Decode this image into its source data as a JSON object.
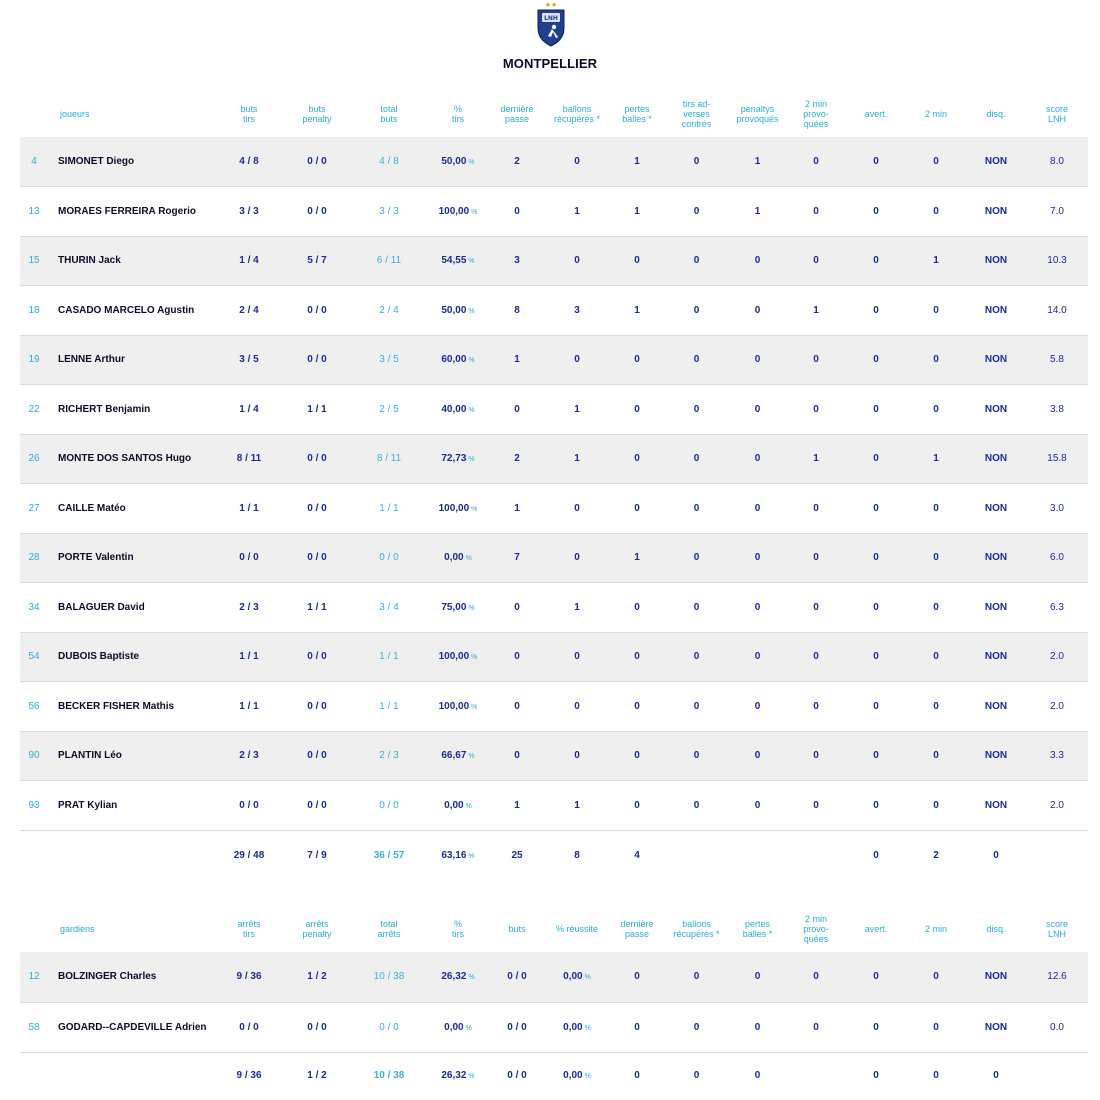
{
  "team": {
    "name": "MONTPELLIER"
  },
  "logo": {
    "icon": "lnh-handball-shield-icon",
    "stars": "★★",
    "color": "#1f3f8f"
  },
  "players": {
    "headers": [
      {
        "line1": "",
        "line2": ""
      },
      {
        "line1": "joueurs",
        "line2": ""
      },
      {
        "line1": "buts",
        "line2": "tirs"
      },
      {
        "line1": "buts",
        "line2": "penalty"
      },
      {
        "line1": "total",
        "line2": "buts"
      },
      {
        "line1": "%",
        "line2": "tirs"
      },
      {
        "line1": "dernière",
        "line2": "passe"
      },
      {
        "line1": "ballons",
        "line2": "récupérés *"
      },
      {
        "line1": "pertes",
        "line2": "balles *"
      },
      {
        "line1": "tirs ad-",
        "line2": "verses",
        "line3": "contrés"
      },
      {
        "line1": "penaltys",
        "line2": "provoqués"
      },
      {
        "line1": "2 min",
        "line2": "provo-",
        "line3": "quées"
      },
      {
        "line1": "avert.",
        "line2": ""
      },
      {
        "line1": "2 min",
        "line2": ""
      },
      {
        "line1": "disq.",
        "line2": ""
      },
      {
        "line1": "score",
        "line2": "LNH"
      }
    ],
    "rows": [
      {
        "num": "4",
        "name": "SIMONET Diego",
        "buts_tirs": "4 / 8",
        "penalty": "0 / 0",
        "total": "4 / 8",
        "pct": "50,00",
        "derniere": "2",
        "recup": "0",
        "pertes": "1",
        "contres": "0",
        "pen_prov": "1",
        "min_prov": "0",
        "avert": "0",
        "min2": "0",
        "disq": "NON",
        "score": "8.0"
      },
      {
        "num": "13",
        "name": "MORAES FERREIRA Rogerio",
        "buts_tirs": "3 / 3",
        "penalty": "0 / 0",
        "total": "3 / 3",
        "pct": "100,00",
        "derniere": "0",
        "recup": "1",
        "pertes": "1",
        "contres": "0",
        "pen_prov": "1",
        "min_prov": "0",
        "avert": "0",
        "min2": "0",
        "disq": "NON",
        "score": "7.0"
      },
      {
        "num": "15",
        "name": "THURIN Jack",
        "buts_tirs": "1 / 4",
        "penalty": "5 / 7",
        "total": "6 / 11",
        "pct": "54,55",
        "derniere": "3",
        "recup": "0",
        "pertes": "0",
        "contres": "0",
        "pen_prov": "0",
        "min_prov": "0",
        "avert": "0",
        "min2": "1",
        "disq": "NON",
        "score": "10.3"
      },
      {
        "num": "18",
        "name": "CASADO MARCELO Agustin",
        "buts_tirs": "2 / 4",
        "penalty": "0 / 0",
        "total": "2 / 4",
        "pct": "50,00",
        "derniere": "8",
        "recup": "3",
        "pertes": "1",
        "contres": "0",
        "pen_prov": "0",
        "min_prov": "1",
        "avert": "0",
        "min2": "0",
        "disq": "NON",
        "score": "14.0"
      },
      {
        "num": "19",
        "name": "LENNE Arthur",
        "buts_tirs": "3 / 5",
        "penalty": "0 / 0",
        "total": "3 / 5",
        "pct": "60,00",
        "derniere": "1",
        "recup": "0",
        "pertes": "0",
        "contres": "0",
        "pen_prov": "0",
        "min_prov": "0",
        "avert": "0",
        "min2": "0",
        "disq": "NON",
        "score": "5.8"
      },
      {
        "num": "22",
        "name": "RICHERT Benjamin",
        "buts_tirs": "1 / 4",
        "penalty": "1 / 1",
        "total": "2 / 5",
        "pct": "40,00",
        "derniere": "0",
        "recup": "1",
        "pertes": "0",
        "contres": "0",
        "pen_prov": "0",
        "min_prov": "0",
        "avert": "0",
        "min2": "0",
        "disq": "NON",
        "score": "3.8"
      },
      {
        "num": "26",
        "name": "MONTE DOS SANTOS Hugo",
        "buts_tirs": "8 / 11",
        "penalty": "0 / 0",
        "total": "8 / 11",
        "pct": "72,73",
        "derniere": "2",
        "recup": "1",
        "pertes": "0",
        "contres": "0",
        "pen_prov": "0",
        "min_prov": "1",
        "avert": "0",
        "min2": "1",
        "disq": "NON",
        "score": "15.8"
      },
      {
        "num": "27",
        "name": "CAILLE Matéo",
        "buts_tirs": "1 / 1",
        "penalty": "0 / 0",
        "total": "1 / 1",
        "pct": "100,00",
        "derniere": "1",
        "recup": "0",
        "pertes": "0",
        "contres": "0",
        "pen_prov": "0",
        "min_prov": "0",
        "avert": "0",
        "min2": "0",
        "disq": "NON",
        "score": "3.0"
      },
      {
        "num": "28",
        "name": "PORTE Valentin",
        "buts_tirs": "0 / 0",
        "penalty": "0 / 0",
        "total": "0 / 0",
        "pct": "0,00",
        "derniere": "7",
        "recup": "0",
        "pertes": "1",
        "contres": "0",
        "pen_prov": "0",
        "min_prov": "0",
        "avert": "0",
        "min2": "0",
        "disq": "NON",
        "score": "6.0"
      },
      {
        "num": "34",
        "name": "BALAGUER David",
        "buts_tirs": "2 / 3",
        "penalty": "1 / 1",
        "total": "3 / 4",
        "pct": "75,00",
        "derniere": "0",
        "recup": "1",
        "pertes": "0",
        "contres": "0",
        "pen_prov": "0",
        "min_prov": "0",
        "avert": "0",
        "min2": "0",
        "disq": "NON",
        "score": "6.3"
      },
      {
        "num": "54",
        "name": "DUBOIS Baptiste",
        "buts_tirs": "1 / 1",
        "penalty": "0 / 0",
        "total": "1 / 1",
        "pct": "100,00",
        "derniere": "0",
        "recup": "0",
        "pertes": "0",
        "contres": "0",
        "pen_prov": "0",
        "min_prov": "0",
        "avert": "0",
        "min2": "0",
        "disq": "NON",
        "score": "2.0"
      },
      {
        "num": "56",
        "name": "BECKER FISHER Mathis",
        "buts_tirs": "1 / 1",
        "penalty": "0 / 0",
        "total": "1 / 1",
        "pct": "100,00",
        "derniere": "0",
        "recup": "0",
        "pertes": "0",
        "contres": "0",
        "pen_prov": "0",
        "min_prov": "0",
        "avert": "0",
        "min2": "0",
        "disq": "NON",
        "score": "2.0"
      },
      {
        "num": "90",
        "name": "PLANTIN Léo",
        "buts_tirs": "2 / 3",
        "penalty": "0 / 0",
        "total": "2 / 3",
        "pct": "66,67",
        "derniere": "0",
        "recup": "0",
        "pertes": "0",
        "contres": "0",
        "pen_prov": "0",
        "min_prov": "0",
        "avert": "0",
        "min2": "0",
        "disq": "NON",
        "score": "3.3"
      },
      {
        "num": "93",
        "name": "PRAT Kylian",
        "buts_tirs": "0 / 0",
        "penalty": "0 / 0",
        "total": "0 / 0",
        "pct": "0,00",
        "derniere": "1",
        "recup": "1",
        "pertes": "0",
        "contres": "0",
        "pen_prov": "0",
        "min_prov": "0",
        "avert": "0",
        "min2": "0",
        "disq": "NON",
        "score": "2.0"
      }
    ],
    "totals": {
      "buts_tirs": "29 / 48",
      "penalty": "7 / 9",
      "total": "36 / 57",
      "pct": "63,16",
      "derniere": "25",
      "recup": "8",
      "pertes": "4",
      "avert": "0",
      "min2": "2",
      "disq": "0"
    }
  },
  "keepers": {
    "headers": [
      {
        "line1": "",
        "line2": ""
      },
      {
        "line1": "gardiens",
        "line2": ""
      },
      {
        "line1": "arrêts",
        "line2": "tirs"
      },
      {
        "line1": "arrêts",
        "line2": "penalty"
      },
      {
        "line1": "total",
        "line2": "arrêts"
      },
      {
        "line1": "%",
        "line2": "tirs"
      },
      {
        "line1": "buts",
        "line2": ""
      },
      {
        "line1": "% réussite",
        "line2": ""
      },
      {
        "line1": "dernière",
        "line2": "passe"
      },
      {
        "line1": "ballons",
        "line2": "récupérés *"
      },
      {
        "line1": "pertes",
        "line2": "balles *"
      },
      {
        "line1": "2 min",
        "line2": "provo-",
        "line3": "quées"
      },
      {
        "line1": "avert.",
        "line2": ""
      },
      {
        "line1": "2 min",
        "line2": ""
      },
      {
        "line1": "disq.",
        "line2": ""
      },
      {
        "line1": "score",
        "line2": "LNH"
      }
    ],
    "rows": [
      {
        "num": "12",
        "name": "BOLZINGER Charles",
        "arrets_tirs": "9 / 36",
        "arrets_penalty": "1 / 2",
        "total": "10 / 38",
        "pct": "26,32",
        "buts": "0 / 0",
        "reussite": "0,00",
        "derniere": "0",
        "recup": "0",
        "pertes": "0",
        "min_prov": "0",
        "avert": "0",
        "min2": "0",
        "disq": "NON",
        "score": "12.6"
      },
      {
        "num": "58",
        "name": "GODARD--CAPDEVILLE Adrien",
        "arrets_tirs": "0 / 0",
        "arrets_penalty": "0 / 0",
        "total": "0 / 0",
        "pct": "0,00",
        "buts": "0 / 0",
        "reussite": "0,00",
        "derniere": "0",
        "recup": "0",
        "pertes": "0",
        "min_prov": "0",
        "avert": "0",
        "min2": "0",
        "disq": "NON",
        "score": "0.0"
      }
    ],
    "totals": {
      "arrets_tirs": "9 / 36",
      "arrets_penalty": "1 / 2",
      "total": "10 / 38",
      "pct": "26,32",
      "buts": "0 / 0",
      "reussite": "0,00",
      "derniere": "0",
      "recup": "0",
      "pertes": "0",
      "avert": "0",
      "min2": "0",
      "disq": "0"
    }
  },
  "units": {
    "percent": "%"
  }
}
